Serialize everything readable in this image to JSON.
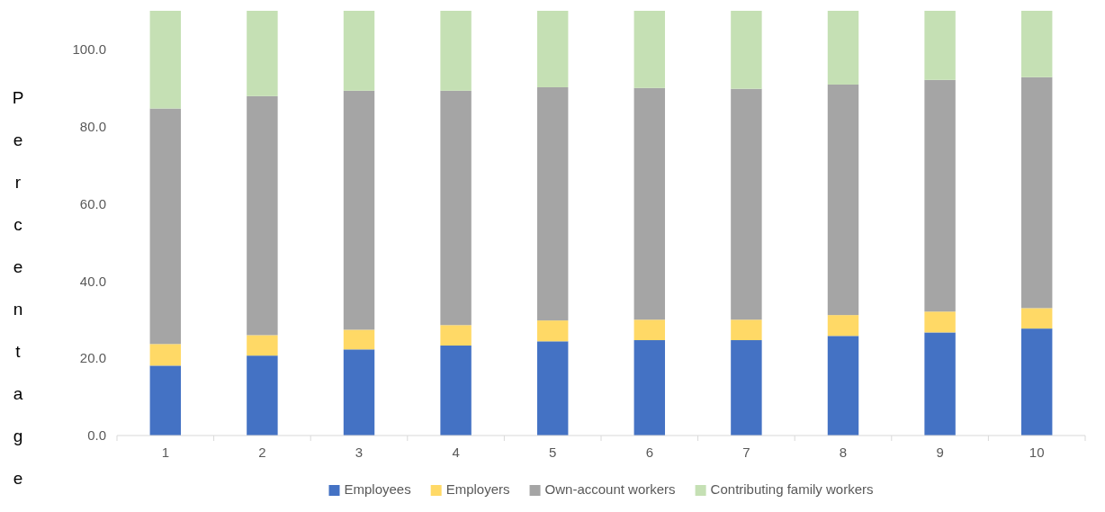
{
  "chart_data": {
    "type": "bar",
    "stacked": true,
    "ylabel": "Percentage",
    "categories": [
      "1",
      "2",
      "3",
      "4",
      "5",
      "6",
      "7",
      "8",
      "9",
      "10"
    ],
    "series": [
      {
        "name": "Employees",
        "color": "#4472c4",
        "values": [
          18.1,
          20.7,
          22.3,
          23.3,
          24.4,
          24.7,
          24.7,
          25.8,
          26.7,
          27.7
        ]
      },
      {
        "name": "Employers",
        "color": "#ffd966",
        "values": [
          5.6,
          5.3,
          5.1,
          5.3,
          5.4,
          5.3,
          5.3,
          5.4,
          5.4,
          5.3
        ]
      },
      {
        "name": "Own-account workers",
        "color": "#a5a5a5",
        "values": [
          61.0,
          61.9,
          61.9,
          60.7,
          60.4,
          60.0,
          59.8,
          59.7,
          60.0,
          59.8
        ]
      },
      {
        "name": "Contributing family workers",
        "color": "#c5e0b4",
        "values": [
          25.3,
          22.1,
          20.7,
          20.7,
          19.8,
          20.0,
          20.2,
          19.1,
          17.9,
          17.2
        ]
      }
    ],
    "ylim": [
      0,
      110
    ],
    "yticks": [
      {
        "value": 0,
        "label": "0.0"
      },
      {
        "value": 20,
        "label": "20.0"
      },
      {
        "value": 40,
        "label": "40.0"
      },
      {
        "value": 60,
        "label": "60.0"
      },
      {
        "value": 80,
        "label": "80.0"
      },
      {
        "value": 100,
        "label": "100.0"
      }
    ],
    "grid": false,
    "legend": "bottom"
  }
}
